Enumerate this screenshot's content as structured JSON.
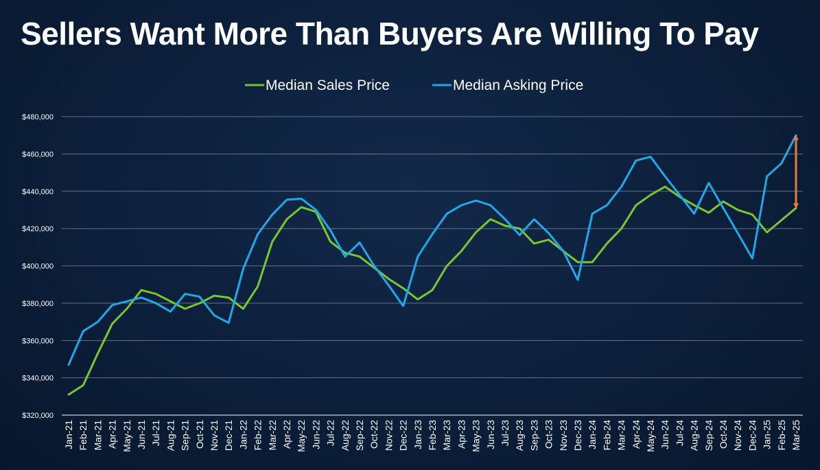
{
  "chart_data": {
    "type": "line",
    "title": "Sellers Want More Than Buyers Are Willing To Pay",
    "x": [
      "Jan-21",
      "Feb-21",
      "Mar-21",
      "Apr-21",
      "May-21",
      "Jun-21",
      "Jul-21",
      "Aug-21",
      "Sep-21",
      "Oct-21",
      "Nov-21",
      "Dec-21",
      "Jan-22",
      "Feb-22",
      "Mar-22",
      "Apr-22",
      "May-22",
      "Jun-22",
      "Jul-22",
      "Aug-22",
      "Sep-22",
      "Oct-22",
      "Nov-22",
      "Dec-22",
      "Jan-23",
      "Feb-23",
      "Mar-23",
      "Apr-23",
      "May-23",
      "Jun-23",
      "Jul-23",
      "Aug-23",
      "Sep-23",
      "Oct-23",
      "Nov-23",
      "Dec-23",
      "Jan-24",
      "Feb-24",
      "Mar-24",
      "Apr-24",
      "May-24",
      "Jun-24",
      "Jul-24",
      "Aug-24",
      "Sep-24",
      "Oct-24",
      "Nov-24",
      "Dec-24",
      "Jan-25",
      "Feb-25",
      "Mar-25"
    ],
    "series": [
      {
        "name": "Median Sales Price",
        "color": "#7ac72b",
        "values": [
          331000,
          336000,
          353000,
          369000,
          377000,
          387000,
          385000,
          381000,
          377000,
          380000,
          384000,
          383000,
          377000,
          389000,
          413000,
          425000,
          431500,
          429000,
          413000,
          407000,
          405000,
          399000,
          393000,
          388000,
          382000,
          387000,
          400000,
          408000,
          418000,
          425000,
          421500,
          420000,
          412000,
          414000,
          408000,
          402000,
          402000,
          412000,
          420000,
          432500,
          438000,
          442500,
          437000,
          432500,
          428500,
          434500,
          430000,
          427500,
          418000,
          424500,
          431000
        ]
      },
      {
        "name": "Median Asking Price",
        "color": "#1fa8ea",
        "values": [
          347000,
          365000,
          370000,
          379000,
          381000,
          383000,
          380000,
          375500,
          385000,
          383500,
          373500,
          369500,
          398500,
          417000,
          427500,
          435500,
          436000,
          430000,
          419000,
          405000,
          412500,
          400000,
          389500,
          378500,
          405000,
          417000,
          428000,
          432500,
          435000,
          432500,
          425000,
          416500,
          425000,
          417500,
          408000,
          392500,
          428000,
          432500,
          442500,
          456500,
          458500,
          448000,
          438000,
          428000,
          444500,
          431000,
          417500,
          404000,
          448000,
          455000,
          470000
        ]
      }
    ],
    "ylim": [
      320000,
      480000
    ],
    "y_ticks": [
      "$320,000",
      "$340,000",
      "$360,000",
      "$380,000",
      "$400,000",
      "$420,000",
      "$440,000",
      "$460,000",
      "$480,000"
    ],
    "xlabel": "",
    "ylabel": "",
    "grid": true,
    "legend_position": "top-center",
    "annotation": {
      "type": "double-arrow",
      "at": "Mar-25",
      "from": 431000,
      "to": 470000,
      "color": "#e67e3a"
    }
  }
}
